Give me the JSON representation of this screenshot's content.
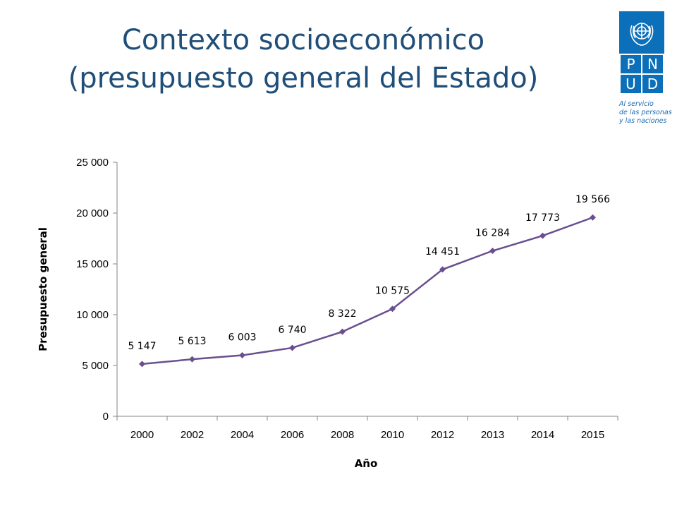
{
  "slide": {
    "title_lines": [
      "Contexto socioeconómico",
      "(presupuesto general del Estado)"
    ]
  },
  "logo": {
    "emblem": "un-emblem-icon",
    "letters": [
      "P",
      "N",
      "U",
      "D"
    ],
    "tagline_lines": [
      "Al servicio",
      "de las personas",
      "y las naciones"
    ],
    "colors": {
      "brand_blue": "#0b6fb9"
    }
  },
  "chart_data": {
    "type": "line",
    "categories": [
      "2000",
      "2002",
      "2004",
      "2006",
      "2008",
      "2010",
      "2012",
      "2013",
      "2014",
      "2015"
    ],
    "values": [
      5147,
      5613,
      6003,
      6740,
      8322,
      10575,
      14451,
      16284,
      17773,
      19566
    ],
    "data_labels": [
      "5 147",
      "5 613",
      "6 003",
      "6 740",
      "8 322",
      "10 575",
      "14 451",
      "16 284",
      "17 773",
      "19 566"
    ],
    "yticks": [
      0,
      5000,
      10000,
      15000,
      20000,
      25000
    ],
    "ytick_labels": [
      "0",
      "5 000",
      "10 000",
      "15 000",
      "20 000",
      "25 000"
    ],
    "ylim": [
      0,
      25000
    ],
    "xlabel": "Año",
    "ylabel": "Presupuesto general",
    "grid": false,
    "legend": "none",
    "colors": {
      "line": "#6a4f8f",
      "axis": "#868686"
    }
  }
}
